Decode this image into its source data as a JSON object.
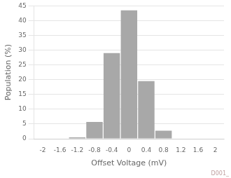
{
  "chart_data": {
    "type": "bar",
    "x": [
      -1.2,
      -0.8,
      -0.4,
      0.0,
      0.4,
      0.8
    ],
    "values": [
      0.5,
      5.7,
      29.0,
      43.5,
      19.5,
      2.7
    ],
    "color": "#a8a8a8",
    "xlabel": "Offset Voltage (mV)",
    "ylabel": "Population (%)",
    "xlim": [
      -2.2,
      2.2
    ],
    "ylim": [
      0,
      45
    ],
    "xticks": [
      -2,
      -1.6,
      -1.2,
      -0.8,
      -0.4,
      0,
      0.4,
      0.8,
      1.2,
      1.6,
      2
    ],
    "yticks": [
      0,
      5,
      10,
      15,
      20,
      25,
      30,
      35,
      40,
      45
    ],
    "grid": "y",
    "annotations": [
      "D001_"
    ]
  }
}
